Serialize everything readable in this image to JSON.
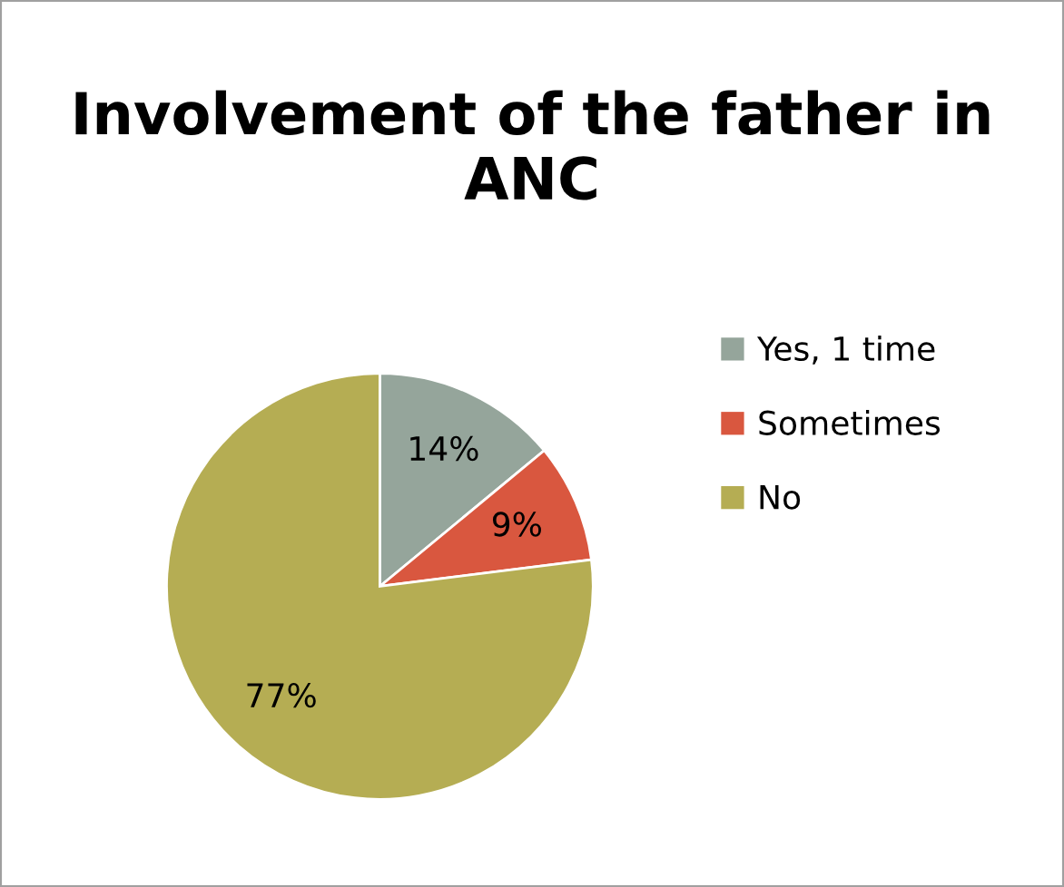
{
  "chart_data": {
    "type": "pie",
    "title": "Involvement of the father in ANC",
    "categories": [
      "Yes, 1 time",
      "Sometimes",
      "No"
    ],
    "values": [
      14,
      9,
      77
    ],
    "colors": [
      "#95a59b",
      "#d9573f",
      "#b5ad53"
    ],
    "value_labels": [
      "14%",
      "9%",
      "77%"
    ],
    "legend": "right"
  }
}
